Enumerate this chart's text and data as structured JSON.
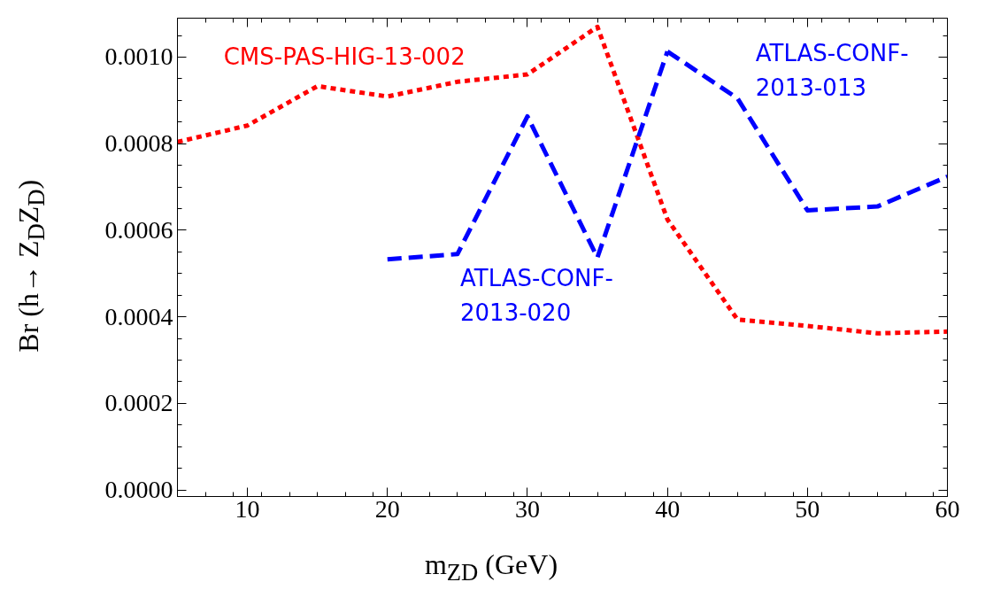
{
  "chart_data": {
    "type": "line",
    "xlabel": "m$_{ZD}$ (GeV)",
    "ylabel": "Br (h→ Z$_{D}$Z$_{D}$)",
    "xlim": [
      5,
      60
    ],
    "xticks": [
      10,
      20,
      30,
      40,
      50,
      60
    ],
    "ylim": [
      -1.5e-05,
      0.00109
    ],
    "yticks": [
      {
        "value": 0,
        "label": "0.0000"
      },
      {
        "value": 0.0002,
        "label": "0.0002"
      },
      {
        "value": 0.0004,
        "label": "0.0004"
      },
      {
        "value": 0.0006,
        "label": "0.0006"
      },
      {
        "value": 0.0008,
        "label": "0.0008"
      },
      {
        "value": 0.001,
        "label": "0.0010"
      }
    ],
    "grid": false,
    "series": [
      {
        "name": "CMS-PAS-HIG-13-002",
        "color": "#ff0000",
        "line_style": "dotted",
        "x": [
          5,
          10,
          15,
          20,
          25,
          30,
          35,
          40,
          45,
          50,
          55,
          60
        ],
        "values": [
          0.000804,
          0.000842,
          0.000933,
          0.000909,
          0.000943,
          0.00096,
          0.00107,
          0.000625,
          0.000394,
          0.000379,
          0.000362,
          0.000366
        ]
      },
      {
        "name": "ATLAS-CONF-\n2013-013",
        "color": "#0000ff",
        "line_style": "dashed",
        "x": [
          40,
          45,
          50,
          55,
          60
        ],
        "values": [
          0.001013,
          0.000905,
          0.000646,
          0.000655,
          0.000724
        ]
      },
      {
        "name": "ATLAS-CONF-\n2013-020",
        "color": "#0000ff",
        "line_style": "dashed",
        "x": [
          20,
          25,
          30,
          35,
          40
        ],
        "values": [
          0.000533,
          0.000545,
          0.000863,
          0.000537,
          0.001013
        ]
      }
    ]
  }
}
